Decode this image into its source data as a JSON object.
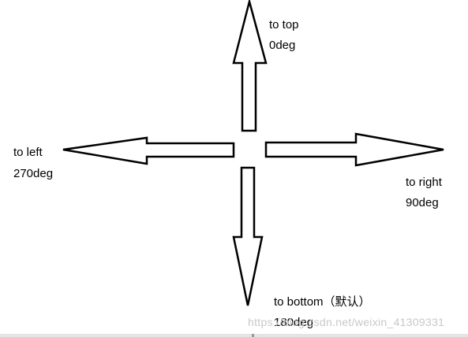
{
  "arrows": [
    {
      "direction": "top",
      "label": "to top",
      "angle": "0deg"
    },
    {
      "direction": "right",
      "label": "to right",
      "angle": "90deg"
    },
    {
      "direction": "bottom",
      "label": "to bottom（默认）",
      "angle": "180deg"
    },
    {
      "direction": "left",
      "label": "to left",
      "angle": "270deg"
    }
  ],
  "watermark": "https://blog.csdn.net/weixin_41309331",
  "colors": {
    "stroke": "#000000",
    "fill": "#ffffff",
    "watermark": "#c8c8c8"
  }
}
